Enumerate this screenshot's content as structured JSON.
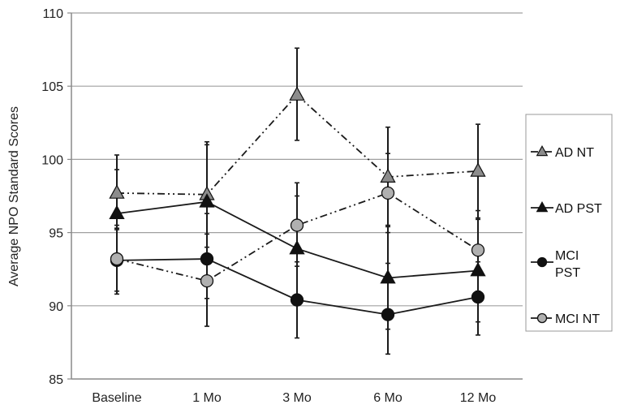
{
  "chart_data": {
    "type": "line",
    "title": "",
    "xlabel": "",
    "ylabel": "Average NPO Standard Scores",
    "ylim": [
      85,
      110
    ],
    "yticks": [
      85,
      90,
      95,
      100,
      105,
      110
    ],
    "grid": true,
    "legend_position": "right",
    "categories": [
      "Baseline",
      "1 Mo",
      "3 Mo",
      "6 Mo",
      "12 Mo"
    ],
    "series": [
      {
        "name": "AD NT",
        "marker": "triangle",
        "marker_color": "#8c8c8c",
        "line_style": "dash-dot-dot",
        "values": [
          97.7,
          97.6,
          104.4,
          98.8,
          99.2
        ],
        "error_upper": [
          100.3,
          101.2,
          107.6,
          102.2,
          102.4
        ],
        "error_lower": [
          95.2,
          94.0,
          101.3,
          95.4,
          96.0
        ]
      },
      {
        "name": "AD PST",
        "marker": "triangle",
        "marker_color": "#111111",
        "line_style": "solid",
        "values": [
          96.3,
          97.1,
          93.9,
          91.9,
          92.4
        ],
        "error_upper": [
          99.3,
          101.0,
          97.5,
          95.5,
          95.9
        ],
        "error_lower": [
          93.3,
          93.2,
          90.3,
          88.4,
          88.9
        ]
      },
      {
        "name": "MCI PST",
        "marker": "circle",
        "marker_color": "#111111",
        "line_style": "solid",
        "values": [
          93.1,
          93.2,
          90.4,
          89.4,
          90.6
        ],
        "error_upper": [
          95.5,
          96.3,
          93.0,
          92.9,
          93.0
        ],
        "error_lower": [
          90.8,
          90.5,
          87.8,
          86.7,
          88.0
        ]
      },
      {
        "name": "MCI NT",
        "marker": "circle",
        "marker_color": "#b0b0b0",
        "line_style": "dash-dot-dot",
        "values": [
          93.2,
          91.7,
          95.5,
          97.7,
          93.8
        ],
        "error_upper": [
          95.3,
          94.9,
          98.4,
          100.4,
          96.5
        ],
        "error_lower": [
          91.0,
          88.6,
          92.7,
          95.0,
          91.0
        ]
      }
    ]
  },
  "legend": {
    "items": [
      {
        "label_lines": [
          "AD NT"
        ]
      },
      {
        "label_lines": [
          "AD PST"
        ]
      },
      {
        "label_lines": [
          "MCI",
          "PST"
        ]
      },
      {
        "label_lines": [
          "MCI NT"
        ]
      }
    ]
  },
  "colors": {
    "gridline": "#a0a0a0",
    "axis": "#8a8a8a",
    "series_dark": "#111111",
    "nt_triangle_fill": "#8c8c8c",
    "nt_circle_fill": "#b0b0b0"
  }
}
